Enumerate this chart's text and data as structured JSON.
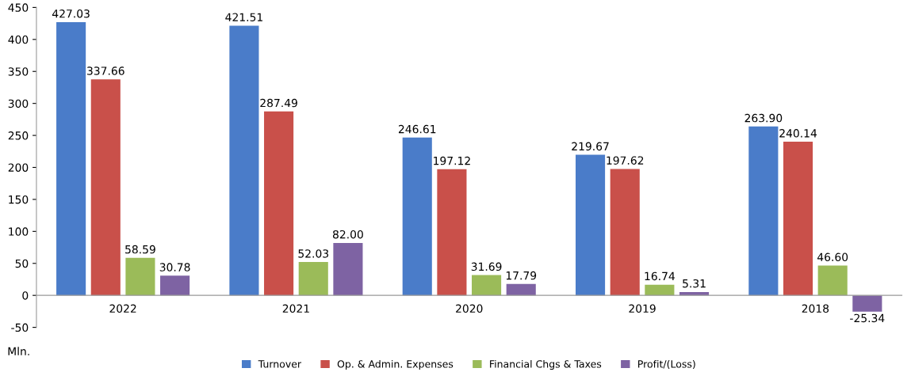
{
  "chart_data": {
    "type": "bar",
    "categories": [
      "2022",
      "2021",
      "2020",
      "2019",
      "2018"
    ],
    "series": [
      {
        "name": "Turnover",
        "color": "#4a7cc9",
        "values": [
          427.03,
          421.51,
          246.61,
          219.67,
          263.9
        ],
        "value_labels": [
          "427.03",
          "421.51",
          "246.61",
          "219.67",
          "263.90"
        ]
      },
      {
        "name": "Op. & Admin. Expenses",
        "color": "#c9504a",
        "values": [
          337.66,
          287.49,
          197.12,
          197.62,
          240.14
        ],
        "value_labels": [
          "337.66",
          "287.49",
          "197.12",
          "197.62",
          "240.14"
        ]
      },
      {
        "name": "Financial Chgs & Taxes",
        "color": "#9bbb59",
        "values": [
          58.59,
          52.03,
          31.69,
          16.74,
          46.6
        ],
        "value_labels": [
          "58.59",
          "52.03",
          "31.69",
          "16.74",
          "46.60"
        ]
      },
      {
        "name": "Profit/(Loss)",
        "color": "#7e63a3",
        "values": [
          30.78,
          82.0,
          17.79,
          5.31,
          -25.34
        ],
        "value_labels": [
          "30.78",
          "82.00",
          "17.79",
          "5.31",
          "-25.34"
        ]
      }
    ],
    "ylim": [
      -50,
      450
    ],
    "yticks": [
      -50,
      0,
      50,
      100,
      150,
      200,
      250,
      300,
      350,
      400,
      450
    ],
    "annotations": [
      "Mln."
    ],
    "grid": false,
    "legend": "bottom"
  }
}
